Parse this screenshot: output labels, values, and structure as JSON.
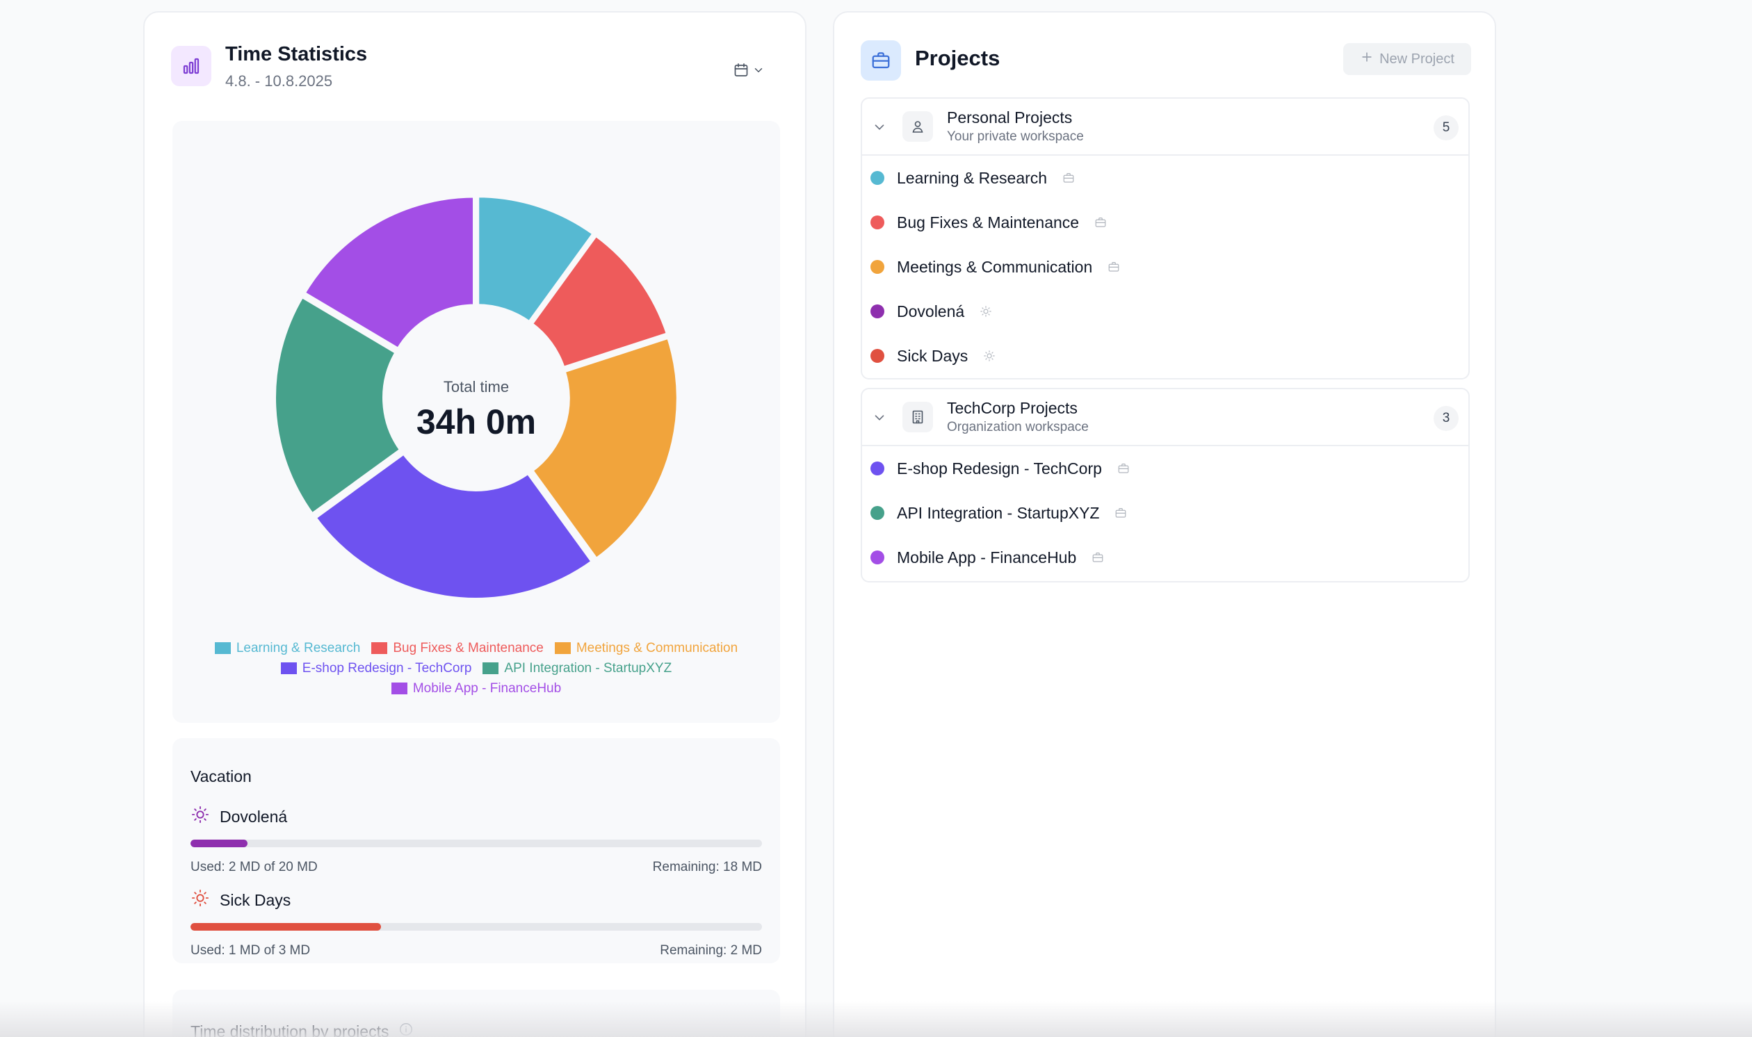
{
  "stats": {
    "title": "Time Statistics",
    "range": "4.8. - 10.8.2025",
    "icons": {
      "header": "bar-chart-icon",
      "date_picker": "calendar-icon"
    },
    "total_label": "Total time",
    "total_value": "34h 0m"
  },
  "chart_data": {
    "type": "pie",
    "donut": true,
    "categories": [
      "Learning & Research",
      "Bug Fixes & Maintenance",
      "Meetings & Communication",
      "E-shop Redesign - TechCorp",
      "API Integration - StartupXYZ",
      "Mobile App - FinanceHub"
    ],
    "values": [
      3.4,
      3.4,
      6.8,
      8.5,
      6.3,
      5.6
    ],
    "unit": "h",
    "colors": [
      "#56b9d2",
      "#ee5b5b",
      "#f1a43c",
      "#6e52f0",
      "#46a18b",
      "#a34ee6"
    ],
    "start_angle_deg": 90,
    "direction": "clockwise",
    "legend_position": "bottom",
    "legend_rows": [
      [
        0,
        1,
        2
      ],
      [
        3,
        4
      ],
      [
        5
      ]
    ]
  },
  "vacation": {
    "title": "Vacation",
    "items": [
      {
        "name": "Dovolená",
        "used": 2,
        "total": 20,
        "used_text": "Used: 2 MD of 20 MD",
        "remaining_text": "Remaining: 18 MD",
        "color": "#8e2fae",
        "icon": "sun-icon",
        "icon_color": "#8e2fae"
      },
      {
        "name": "Sick Days",
        "used": 1,
        "total": 3,
        "used_text": "Used: 1 MD of 3 MD",
        "remaining_text": "Remaining: 2 MD",
        "color": "#e05040",
        "icon": "sun-icon",
        "icon_color": "#e05040"
      }
    ]
  },
  "distribution": {
    "title": "Time distribution by projects",
    "icon": "info-icon"
  },
  "projects": {
    "title": "Projects",
    "icon": "briefcase-icon",
    "new_button": "New Project",
    "groups": [
      {
        "name": "Personal Projects",
        "subtitle": "Your private workspace",
        "count": "5",
        "icon": "user-icon",
        "items": [
          {
            "name": "Learning & Research",
            "color": "#56b9d2",
            "badge": "briefcase-icon"
          },
          {
            "name": "Bug Fixes & Maintenance",
            "color": "#ee5b5b",
            "badge": "briefcase-icon"
          },
          {
            "name": "Meetings & Communication",
            "color": "#f1a43c",
            "badge": "briefcase-icon"
          },
          {
            "name": "Dovolená",
            "color": "#8e2fae",
            "badge": "sun-icon"
          },
          {
            "name": "Sick Days",
            "color": "#e05040",
            "badge": "sun-icon"
          }
        ]
      },
      {
        "name": "TechCorp Projects",
        "subtitle": "Organization workspace",
        "count": "3",
        "icon": "building-icon",
        "items": [
          {
            "name": "E-shop Redesign - TechCorp",
            "color": "#6e52f0",
            "badge": "briefcase-icon"
          },
          {
            "name": "API Integration - StartupXYZ",
            "color": "#46a18b",
            "badge": "briefcase-icon"
          },
          {
            "name": "Mobile App - FinanceHub",
            "color": "#a34ee6",
            "badge": "briefcase-icon"
          }
        ]
      }
    ]
  }
}
